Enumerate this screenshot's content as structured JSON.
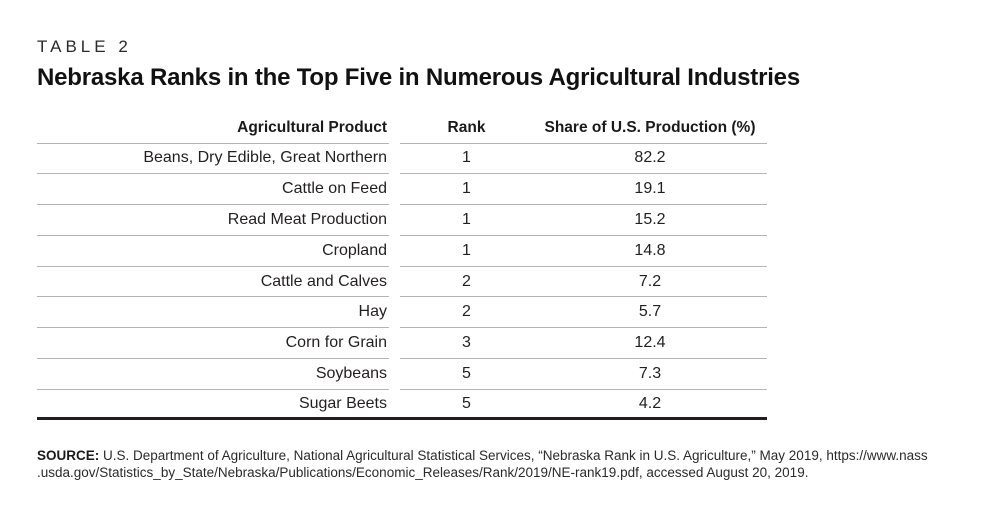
{
  "header": {
    "eyebrow": "TABLE 2",
    "title": "Nebraska Ranks in the Top Five in Numerous Agricultural Industries"
  },
  "table": {
    "columns": [
      "Agricultural Product",
      "Rank",
      "Share of U.S. Production (%)"
    ],
    "rows": [
      {
        "product": "Beans, Dry Edible, Great Northern",
        "rank": "1",
        "share": "82.2"
      },
      {
        "product": "Cattle on Feed",
        "rank": "1",
        "share": "19.1"
      },
      {
        "product": "Read Meat Production",
        "rank": "1",
        "share": "15.2"
      },
      {
        "product": "Cropland",
        "rank": "1",
        "share": "14.8"
      },
      {
        "product": "Cattle and Calves",
        "rank": "2",
        "share": "7.2"
      },
      {
        "product": "Hay",
        "rank": "2",
        "share": "5.7"
      },
      {
        "product": "Corn for Grain",
        "rank": "3",
        "share": "12.4"
      },
      {
        "product": "Soybeans",
        "rank": "5",
        "share": "7.3"
      },
      {
        "product": "Sugar Beets",
        "rank": "5",
        "share": "4.2"
      }
    ]
  },
  "source": {
    "label": "SOURCE:",
    "lines": [
      "U.S. Department of Agriculture, National Agricultural Statistical Services, “Nebraska Rank in U.S. Agriculture,” May 2019, https://www.nass",
      ".usda.gov/Statistics_by_State/Nebraska/Publications/Economic_Releases/Rank/2019/NE-rank19.pdf, accessed August 20, 2019."
    ]
  },
  "colors": {
    "text": "#231f20",
    "rule_light": "#b3b3b3",
    "rule_heavy": "#231f20",
    "background": "#ffffff"
  },
  "chart_data": {
    "type": "table",
    "title": "Nebraska Ranks in the Top Five in Numerous Agricultural Industries",
    "columns": [
      "Agricultural Product",
      "Rank",
      "Share of U.S. Production (%)"
    ],
    "rows": [
      [
        "Beans, Dry Edible, Great Northern",
        1,
        82.2
      ],
      [
        "Cattle on Feed",
        1,
        19.1
      ],
      [
        "Read Meat Production",
        1,
        15.2
      ],
      [
        "Cropland",
        1,
        14.8
      ],
      [
        "Cattle and Calves",
        2,
        7.2
      ],
      [
        "Hay",
        2,
        5.7
      ],
      [
        "Corn for Grain",
        3,
        12.4
      ],
      [
        "Soybeans",
        5,
        7.3
      ],
      [
        "Sugar Beets",
        5,
        4.2
      ]
    ]
  }
}
